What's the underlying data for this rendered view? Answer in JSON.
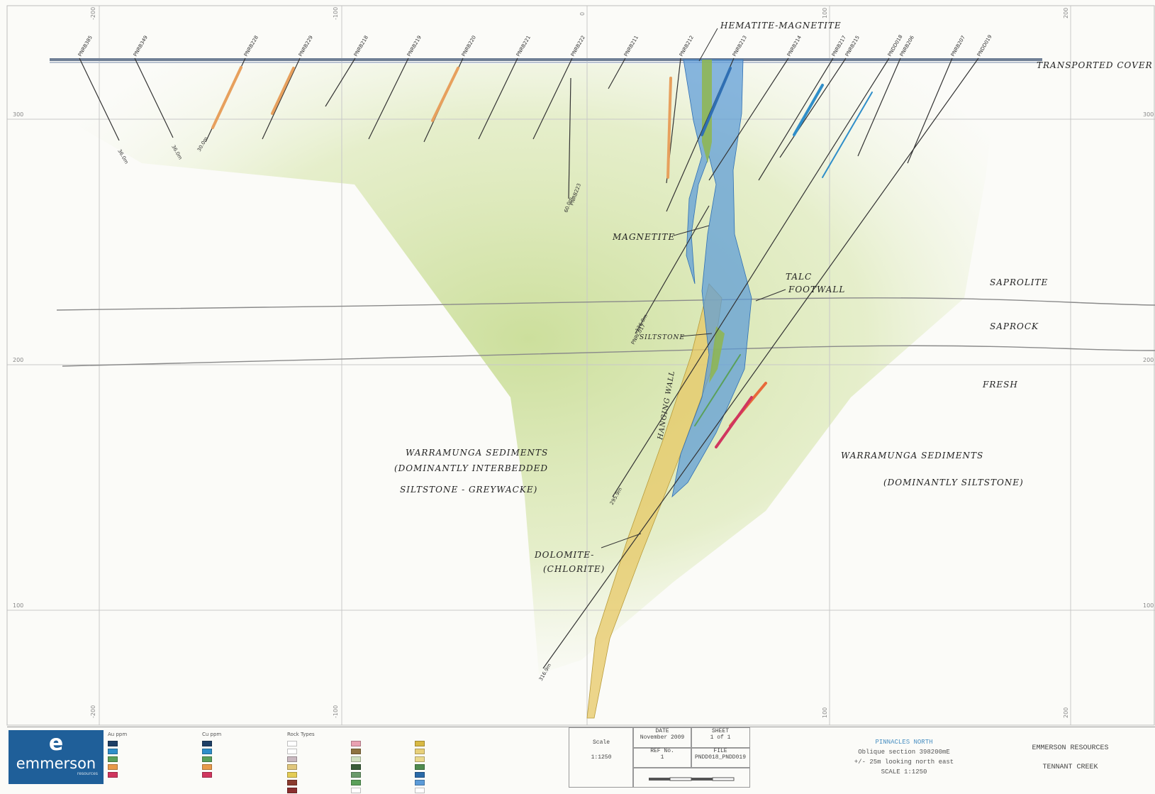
{
  "grid": {
    "x_labels_top": [
      "-200",
      "-100",
      "0",
      "100",
      "200"
    ],
    "x_labels_bottom": [
      "-200",
      "-100",
      "100",
      "200"
    ],
    "y_labels": [
      "300",
      "200",
      "100"
    ]
  },
  "holes": [
    {
      "id": "PNRB385",
      "depth": "36.0m"
    },
    {
      "id": "PNRB349",
      "depth": "36.0m"
    },
    {
      "id": "PNRB228",
      "depth": "30.0m"
    },
    {
      "id": "PNRB229"
    },
    {
      "id": "PNRB218"
    },
    {
      "id": "PNRB219"
    },
    {
      "id": "PNRB220"
    },
    {
      "id": "PNRB221"
    },
    {
      "id": "PNRB222"
    },
    {
      "id": "PNRB211"
    },
    {
      "id": "PNRB212"
    },
    {
      "id": "PNRB213"
    },
    {
      "id": "PNRB214"
    },
    {
      "id": "PNRB217"
    },
    {
      "id": "PNRB215"
    },
    {
      "id": "PNDD018",
      "depth": "295.9m"
    },
    {
      "id": "PNRB206"
    },
    {
      "id": "PNRB207"
    },
    {
      "id": "PNDD019",
      "depth": "316.9m"
    },
    {
      "id": "PNRB223",
      "depth": "60.0m"
    },
    {
      "id": "PNRC017",
      "depth": "126.0m"
    }
  ],
  "annotations": {
    "hematite": "HEMATITE-MAGNETITE",
    "transported": "TRANSPORTED COVER",
    "saprolite": "SAPROLITE",
    "saprock": "SAPROCK",
    "fresh": "FRESH",
    "magnetite": "MAGNETITE",
    "talc": "TALC",
    "footwall": "FOOTWALL",
    "siltstone": "SILTSTONE",
    "hangingwall": "HANGING WALL",
    "left_sed_1": "WARRAMUNGA SEDIMENTS",
    "left_sed_2": "(DOMINANTLY INTERBEDDED",
    "left_sed_3": "SILTSTONE - GREYWACKE)",
    "right_sed_1": "WARRAMUNGA SEDIMENTS",
    "right_sed_2": "(DOMINANTLY SILTSTONE)",
    "dolomite_1": "DOLOMITE-",
    "dolomite_2": "(CHLORITE)"
  },
  "legend": {
    "au": {
      "title": "Au ppm",
      "colors": [
        "#1e3f66",
        "#2f8ec9",
        "#5aa05a",
        "#e89a4a",
        "#d0365f"
      ]
    },
    "cu": {
      "title": "Cu ppm",
      "colors": [
        "#1e3f66",
        "#2f8ec9",
        "#5aa05a",
        "#e89a4a",
        "#d0365f"
      ]
    },
    "lith_title": "Rock Types"
  },
  "title_block": {
    "logo_word": "emmerson",
    "logo_sub": "resources",
    "scale_label": "Scale",
    "scale_value": "1:1250",
    "date_label": "DATE",
    "date_value": "November 2009",
    "sheet_label": "SHEET",
    "sheet_value": "1 of 1",
    "ref_label": "REF No.",
    "ref_value": "1",
    "file_label": "FILE",
    "file_value": "PNDD018_PNDD019",
    "project": "PINNACLES NORTH",
    "desc_1": "Oblique section 398200mE",
    "desc_2": "+/- 25m looking north east",
    "desc_3": "SCALE 1:1250",
    "client_1": "EMMERSON RESOURCES",
    "client_2": "TENNANT CREEK"
  },
  "colors": {
    "magnetite_zone": "#5b9bd8",
    "dolomite_zone": "#e5c25a",
    "siltstone_zone": "#8fb64e",
    "sediment_wash": "#b5cf7a",
    "logo": "#1f5f99"
  }
}
